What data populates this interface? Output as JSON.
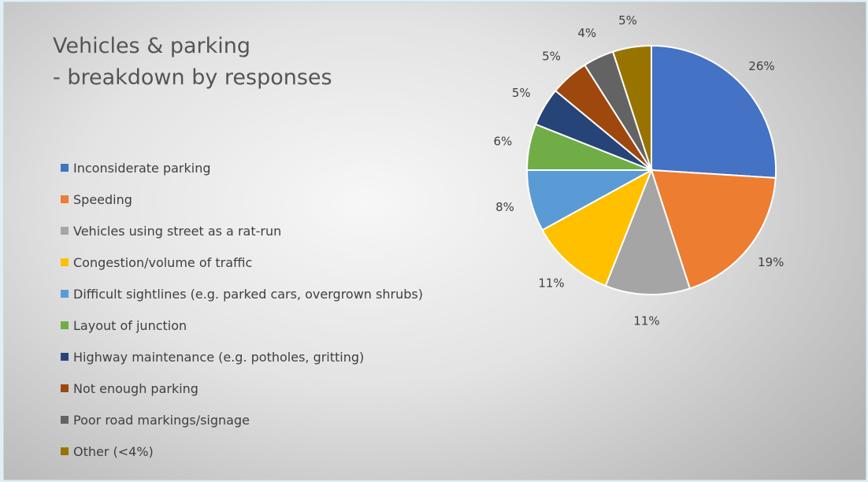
{
  "title_lines": [
    "Vehicles & parking",
    "- breakdown by responses"
  ],
  "chart_data": {
    "type": "pie",
    "title": "Vehicles & parking - breakdown by responses",
    "legend_position": "left",
    "categories": [
      "Inconsiderate parking",
      "Speeding",
      "Vehicles using street as a rat-run",
      "Congestion/volume of traffic",
      "Difficult sightlines (e.g. parked cars, overgrown shrubs)",
      "Layout of junction",
      "Highway maintenance (e.g. potholes, gritting)",
      "Not enough parking",
      "Poor road markings/signage",
      "Other (<4%)"
    ],
    "values": [
      26,
      19,
      11,
      11,
      8,
      6,
      5,
      5,
      4,
      5
    ],
    "data_labels": [
      "26%",
      "19%",
      "11%",
      "11%",
      "8%",
      "6%",
      "5%",
      "5%",
      "4%",
      "5%"
    ],
    "colors": [
      "#4472c4",
      "#ed7d31",
      "#a5a5a5",
      "#ffc000",
      "#5b9bd5",
      "#70ad47",
      "#264478",
      "#9e480e",
      "#636363",
      "#997300"
    ]
  }
}
